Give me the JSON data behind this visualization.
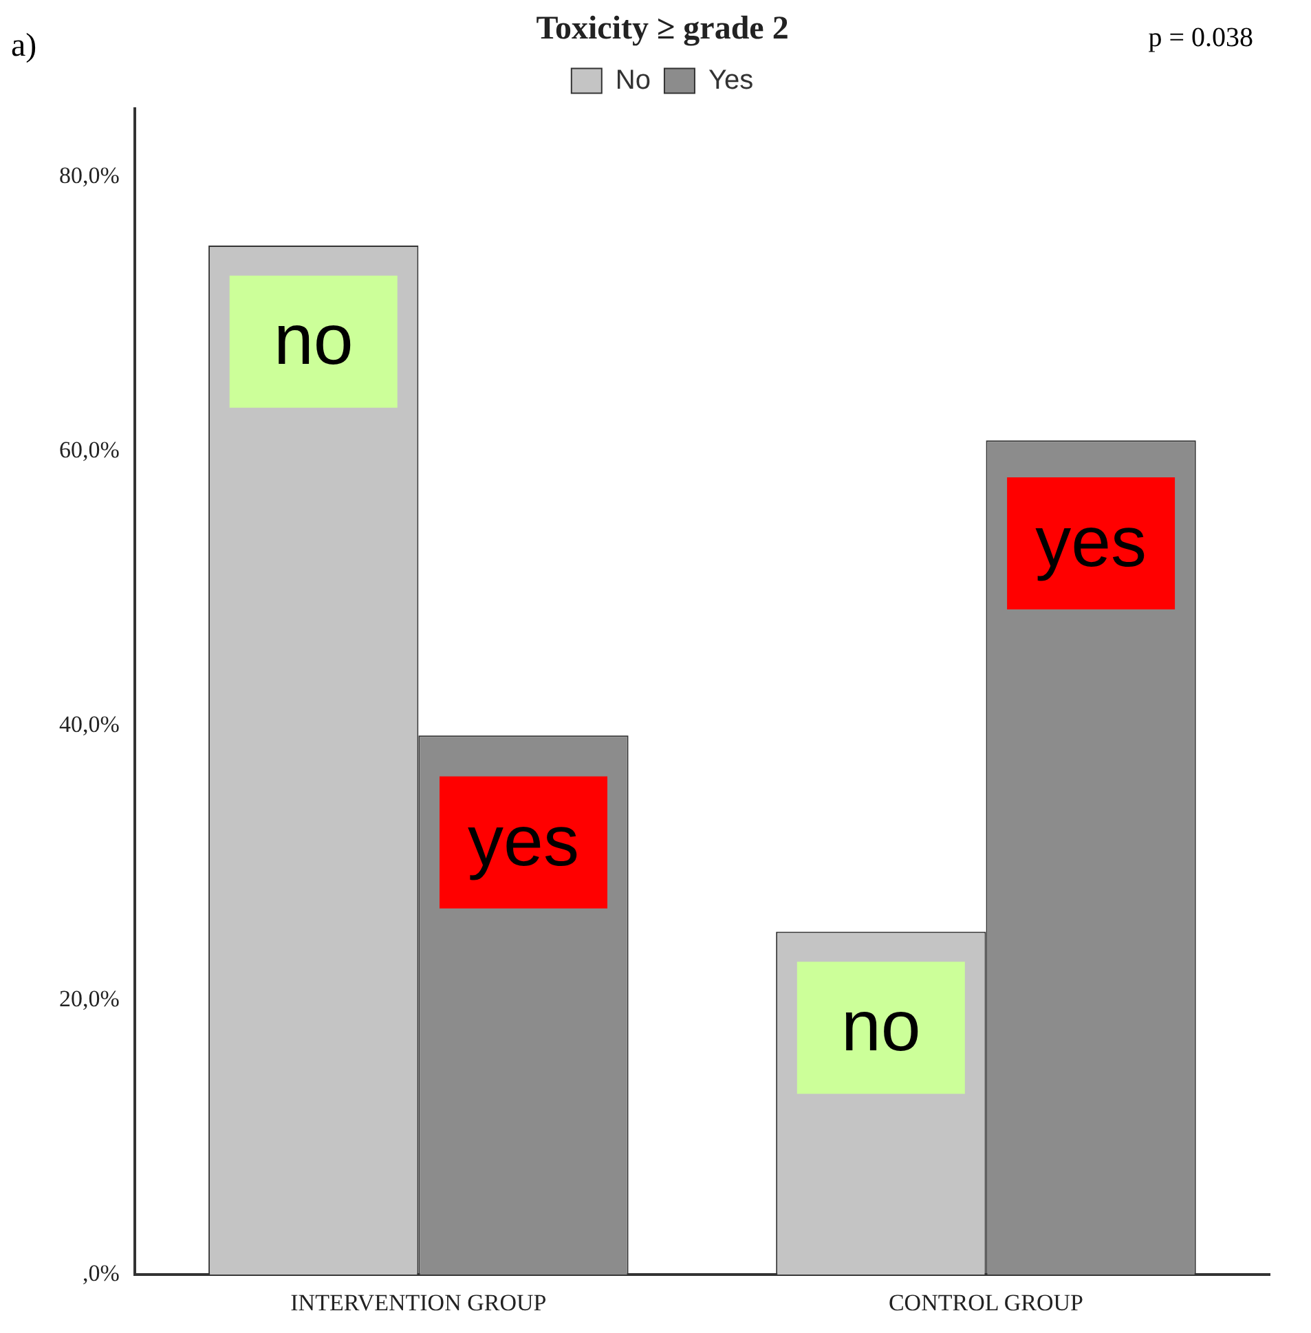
{
  "chart_data": {
    "type": "bar",
    "legend_title": "Toxicity ≥ grade 2",
    "categories": [
      "INTERVENTION GROUP",
      "CONTROL GROUP"
    ],
    "series": [
      {
        "name": "No",
        "color": "#c4c4c4",
        "values": [
          75,
          25
        ]
      },
      {
        "name": "Yes",
        "color": "#8c8c8c",
        "values": [
          39.3,
          60.8
        ]
      }
    ],
    "ylim": [
      0,
      85
    ],
    "yticks": [
      {
        "value": 0,
        "label": ",0%"
      },
      {
        "value": 20,
        "label": "20,0%"
      },
      {
        "value": 40,
        "label": "40,0%"
      },
      {
        "value": 60,
        "label": "60,0%"
      },
      {
        "value": 80,
        "label": "80,0%"
      }
    ],
    "grid": false,
    "legend": "top",
    "annotations": [
      "a)",
      "p = 0.038",
      {
        "text": "no",
        "x": "INTERVENTION GROUP",
        "y": 68
      },
      {
        "text": "yes",
        "x": "INTERVENTION GROUP",
        "y": 31.5
      },
      {
        "text": "no",
        "x": "CONTROL GROUP",
        "y": 18
      },
      {
        "text": "yes",
        "x": "CONTROL GROUP",
        "y": 53.3
      }
    ]
  }
}
